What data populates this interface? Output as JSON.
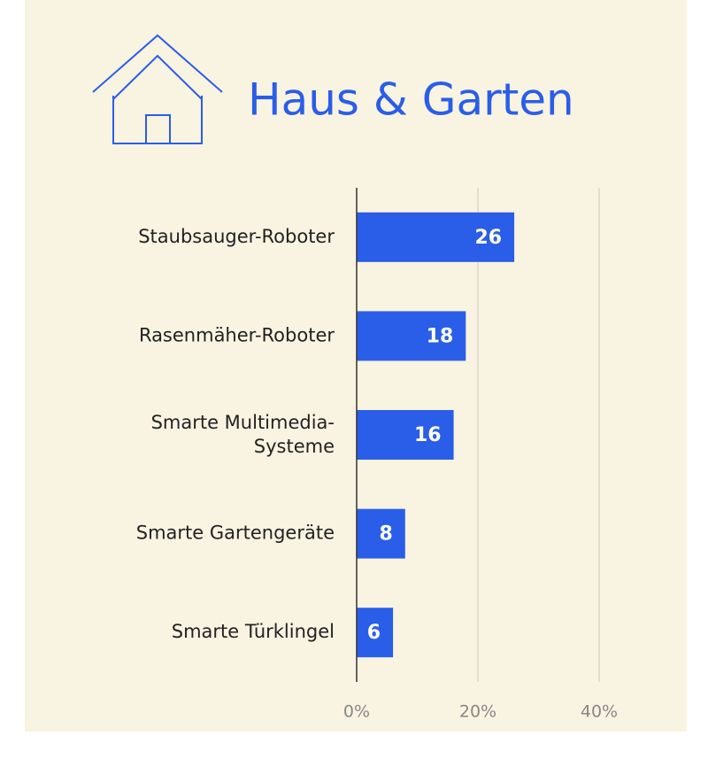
{
  "chart_data": {
    "type": "hbar",
    "title": "Haus & Garten",
    "categories": [
      "Staubsauger-Roboter",
      "Rasenmäher-Roboter",
      "Smarte Multimedia-Systeme",
      "Smarte Gartengeräte",
      "Smarte Türklingel"
    ],
    "values": [
      26,
      18,
      16,
      8,
      6
    ],
    "color": "#2a5ee8",
    "xlim": [
      0,
      40
    ],
    "xticks": [
      {
        "value": 0,
        "label": "0%"
      },
      {
        "value": 20,
        "label": "20%"
      },
      {
        "value": 40,
        "label": "40%"
      }
    ],
    "grid": true
  }
}
